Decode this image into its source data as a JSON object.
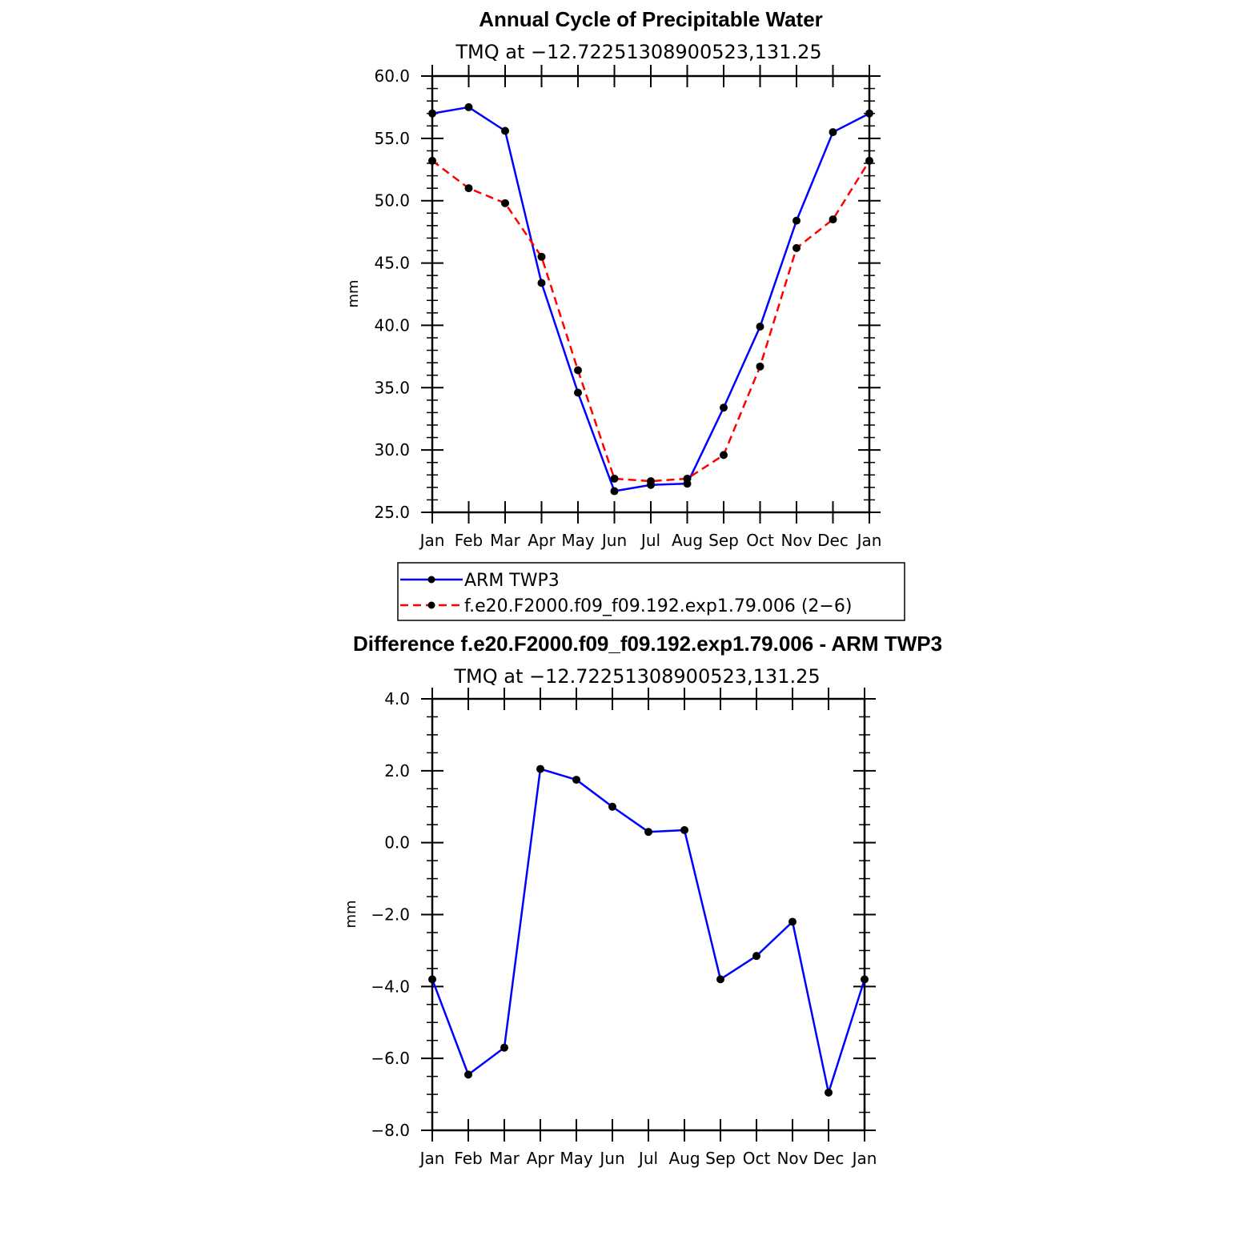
{
  "chart_data": [
    {
      "type": "line",
      "title": "Annual Cycle of Precipitable Water",
      "subtitle": "TMQ at −12.72251308900523,131.25",
      "ylabel": "mm",
      "xlabel": "",
      "categories": [
        "Jan",
        "Feb",
        "Mar",
        "Apr",
        "May",
        "Jun",
        "Jul",
        "Aug",
        "Sep",
        "Oct",
        "Nov",
        "Dec",
        "Jan"
      ],
      "ylim": [
        25,
        60
      ],
      "yticks": [
        "25.0",
        "30.0",
        "35.0",
        "40.0",
        "45.0",
        "50.0",
        "55.0",
        "60.0"
      ],
      "grid": false,
      "legend_position": "below",
      "series": [
        {
          "name": "ARM TWP3",
          "color": "#0000ff",
          "dash": "solid",
          "values": [
            57.0,
            57.5,
            55.6,
            43.4,
            34.6,
            26.7,
            27.2,
            27.3,
            33.4,
            39.9,
            48.4,
            55.5,
            57.0
          ]
        },
        {
          "name": "f.e20.F2000.f09_f09.192.exp1.79.006 (2−6)",
          "color": "#ff0000",
          "dash": "dashed",
          "values": [
            53.2,
            51.0,
            49.8,
            45.5,
            36.4,
            27.7,
            27.5,
            27.7,
            29.6,
            36.7,
            46.2,
            48.5,
            53.2
          ]
        }
      ]
    },
    {
      "type": "line",
      "title": "Difference f.e20.F2000.f09_f09.192.exp1.79.006 - ARM TWP3",
      "subtitle": "TMQ at −12.72251308900523,131.25",
      "ylabel": "mm",
      "xlabel": "",
      "categories": [
        "Jan",
        "Feb",
        "Mar",
        "Apr",
        "May",
        "Jun",
        "Jul",
        "Aug",
        "Sep",
        "Oct",
        "Nov",
        "Dec",
        "Jan"
      ],
      "ylim": [
        -8,
        4
      ],
      "yticks": [
        "−8.0",
        "−6.0",
        "−4.0",
        "−2.0",
        "0.0",
        "2.0",
        "4.0"
      ],
      "grid": false,
      "series": [
        {
          "color": "#0000ff",
          "dash": "solid",
          "values": [
            -3.8,
            -6.45,
            -5.7,
            2.05,
            1.75,
            1.0,
            0.3,
            0.35,
            -3.8,
            -3.15,
            -2.2,
            -6.95,
            -3.8
          ]
        }
      ]
    }
  ]
}
